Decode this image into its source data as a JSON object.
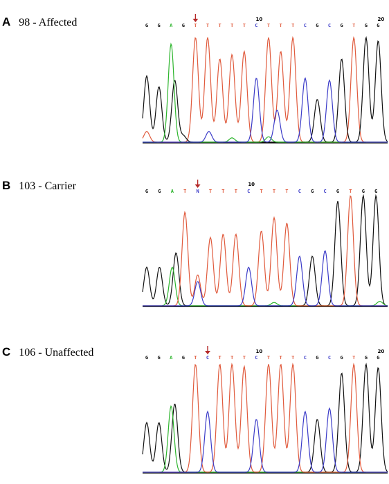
{
  "colors": {
    "A": "#2db52d",
    "C": "#3b3bc8",
    "G": "#111111",
    "T": "#e05a3c",
    "N": "#3b3bc8",
    "arrow": "#b52a2a",
    "baseline": "#000000"
  },
  "panels": [
    {
      "letter": "A",
      "title": "98 - Affected",
      "sequence": [
        "G",
        "G",
        "A",
        "G",
        "T",
        "T",
        "T",
        "T",
        "T",
        "C",
        "T",
        "T",
        "T",
        "C",
        "G",
        "C",
        "G",
        "T",
        "G",
        "G"
      ],
      "position_labels": [
        {
          "index": 10,
          "label": "10"
        },
        {
          "index": 20,
          "label": "20"
        }
      ],
      "arrow_at": 4,
      "peaks": [
        {
          "b": "T",
          "x": 0,
          "h": 0.1
        },
        {
          "b": "G",
          "x": 0,
          "h": 0.62
        },
        {
          "b": "G",
          "x": 1,
          "h": 0.52
        },
        {
          "b": "A",
          "x": 2,
          "h": 0.92
        },
        {
          "b": "G",
          "x": 2.3,
          "h": 0.58
        },
        {
          "b": "G",
          "x": 3,
          "h": 0.06
        },
        {
          "b": "T",
          "x": 4,
          "h": 0.98
        },
        {
          "b": "T",
          "x": 5,
          "h": 0.98
        },
        {
          "b": "T",
          "x": 6,
          "h": 0.78
        },
        {
          "b": "T",
          "x": 7,
          "h": 0.82
        },
        {
          "b": "T",
          "x": 8,
          "h": 0.85
        },
        {
          "b": "C",
          "x": 5.1,
          "h": 0.1
        },
        {
          "b": "C",
          "x": 9,
          "h": 0.6
        },
        {
          "b": "T",
          "x": 10,
          "h": 0.98
        },
        {
          "b": "T",
          "x": 11,
          "h": 0.85
        },
        {
          "b": "T",
          "x": 12,
          "h": 0.98
        },
        {
          "b": "C",
          "x": 10.7,
          "h": 0.3
        },
        {
          "b": "A",
          "x": 10,
          "h": 0.05
        },
        {
          "b": "A",
          "x": 7,
          "h": 0.04
        },
        {
          "b": "C",
          "x": 13,
          "h": 0.6
        },
        {
          "b": "G",
          "x": 14,
          "h": 0.4
        },
        {
          "b": "C",
          "x": 15,
          "h": 0.58
        },
        {
          "b": "G",
          "x": 16,
          "h": 0.78
        },
        {
          "b": "T",
          "x": 17,
          "h": 0.98
        },
        {
          "b": "G",
          "x": 18,
          "h": 0.98
        },
        {
          "b": "G",
          "x": 19,
          "h": 0.95
        }
      ]
    },
    {
      "letter": "B",
      "title": "103 - Carrier",
      "sequence": [
        "G",
        "G",
        "A",
        "T",
        "N",
        "T",
        "T",
        "T",
        "C",
        "T",
        "T",
        "T",
        "C",
        "G",
        "C",
        "G",
        "T",
        "G",
        "G"
      ],
      "position_labels": [
        {
          "index": 9,
          "label": "10"
        }
      ],
      "arrow_at": 4,
      "peaks": [
        {
          "b": "G",
          "x": 0,
          "h": 0.35
        },
        {
          "b": "G",
          "x": 1,
          "h": 0.35
        },
        {
          "b": "A",
          "x": 2,
          "h": 0.35
        },
        {
          "b": "G",
          "x": 2.3,
          "h": 0.48
        },
        {
          "b": "T",
          "x": 3,
          "h": 0.85
        },
        {
          "b": "C",
          "x": 4,
          "h": 0.22
        },
        {
          "b": "T",
          "x": 4,
          "h": 0.28
        },
        {
          "b": "T",
          "x": 5,
          "h": 0.62
        },
        {
          "b": "T",
          "x": 6,
          "h": 0.65
        },
        {
          "b": "T",
          "x": 7,
          "h": 0.65
        },
        {
          "b": "C",
          "x": 8,
          "h": 0.35
        },
        {
          "b": "T",
          "x": 9,
          "h": 0.68
        },
        {
          "b": "T",
          "x": 10,
          "h": 0.8
        },
        {
          "b": "T",
          "x": 11,
          "h": 0.75
        },
        {
          "b": "A",
          "x": 10,
          "h": 0.03
        },
        {
          "b": "C",
          "x": 12,
          "h": 0.45
        },
        {
          "b": "G",
          "x": 13,
          "h": 0.45
        },
        {
          "b": "C",
          "x": 14,
          "h": 0.5
        },
        {
          "b": "G",
          "x": 15,
          "h": 0.95
        },
        {
          "b": "T",
          "x": 16,
          "h": 1.0
        },
        {
          "b": "G",
          "x": 17,
          "h": 1.0
        },
        {
          "b": "G",
          "x": 18,
          "h": 1.0
        },
        {
          "b": "A",
          "x": 18.3,
          "h": 0.04
        }
      ]
    },
    {
      "letter": "C",
      "title": "106 - Unaffected",
      "sequence": [
        "G",
        "G",
        "A",
        "G",
        "T",
        "C",
        "T",
        "T",
        "T",
        "C",
        "T",
        "T",
        "T",
        "C",
        "G",
        "C",
        "G",
        "T",
        "G",
        "G"
      ],
      "position_labels": [
        {
          "index": 10,
          "label": "10"
        },
        {
          "index": 20,
          "label": "20"
        }
      ],
      "arrow_at": 5,
      "peaks": [
        {
          "b": "G",
          "x": 0,
          "h": 0.45
        },
        {
          "b": "G",
          "x": 1,
          "h": 0.45
        },
        {
          "b": "A",
          "x": 2,
          "h": 0.6
        },
        {
          "b": "G",
          "x": 2.3,
          "h": 0.62
        },
        {
          "b": "T",
          "x": 4,
          "h": 0.98
        },
        {
          "b": "C",
          "x": 5,
          "h": 0.55
        },
        {
          "b": "T",
          "x": 6,
          "h": 0.98
        },
        {
          "b": "T",
          "x": 7,
          "h": 0.98
        },
        {
          "b": "T",
          "x": 8,
          "h": 0.96
        },
        {
          "b": "C",
          "x": 9,
          "h": 0.48
        },
        {
          "b": "T",
          "x": 10,
          "h": 0.98
        },
        {
          "b": "T",
          "x": 11,
          "h": 0.98
        },
        {
          "b": "T",
          "x": 12,
          "h": 0.98
        },
        {
          "b": "C",
          "x": 13,
          "h": 0.55
        },
        {
          "b": "G",
          "x": 14,
          "h": 0.48
        },
        {
          "b": "C",
          "x": 15,
          "h": 0.58
        },
        {
          "b": "G",
          "x": 16,
          "h": 0.9
        },
        {
          "b": "T",
          "x": 17,
          "h": 0.98
        },
        {
          "b": "G",
          "x": 18,
          "h": 0.98
        },
        {
          "b": "G",
          "x": 19,
          "h": 0.95
        }
      ]
    }
  ]
}
